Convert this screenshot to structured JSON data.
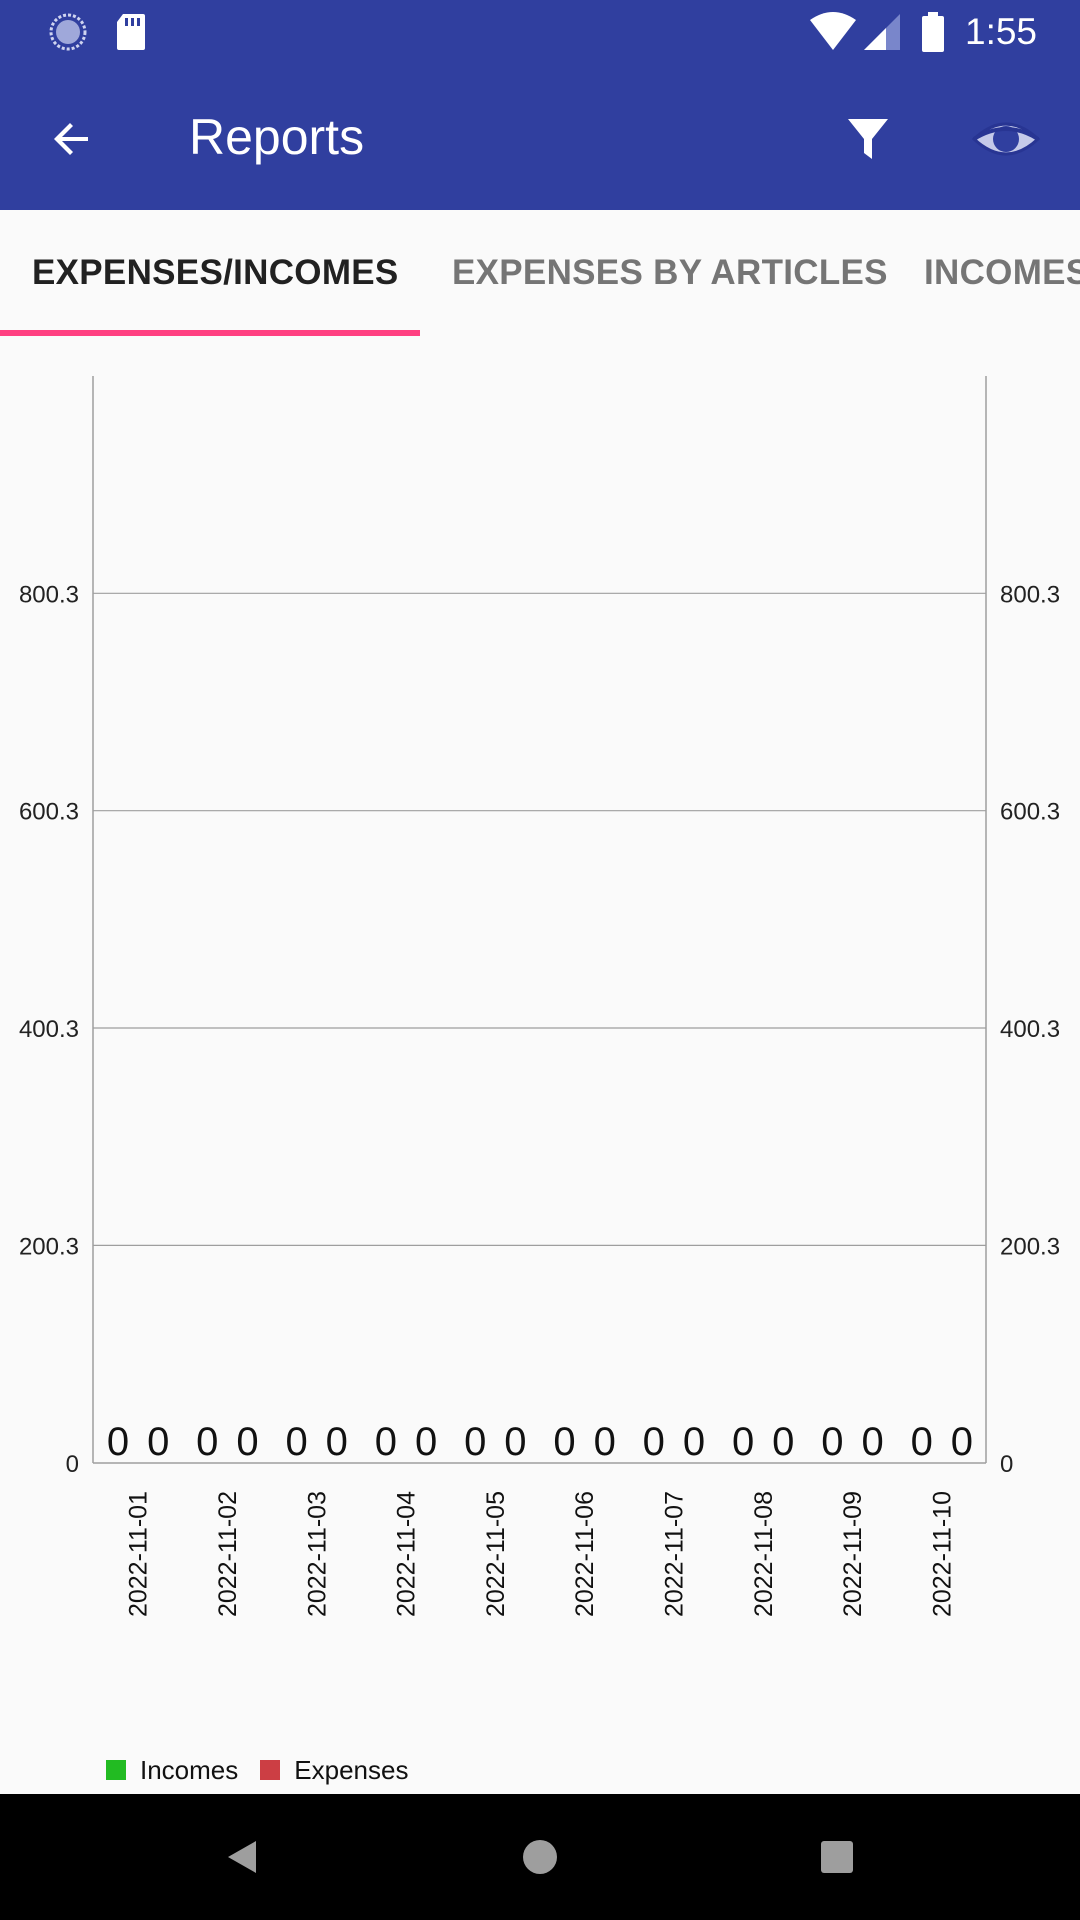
{
  "status_bar": {
    "time": "1:55",
    "icons": [
      "sync-icon",
      "sd-card-icon",
      "wifi-icon",
      "signal-icon",
      "battery-icon"
    ]
  },
  "app_bar": {
    "title": "Reports",
    "back_icon": "arrow-back-icon",
    "filter_icon": "filter-icon",
    "view_icon": "eye-icon",
    "background": "#303f9f"
  },
  "tabs": [
    {
      "label": "EXPENSES/INCOMES",
      "active": true
    },
    {
      "label": "EXPENSES BY ARTICLES",
      "active": false
    },
    {
      "label": "INCOMES",
      "active": false
    }
  ],
  "tab_indicator_color": "#ff4081",
  "chart_data": {
    "type": "bar",
    "categories": [
      "2022-11-01",
      "2022-11-02",
      "2022-11-03",
      "2022-11-04",
      "2022-11-05",
      "2022-11-06",
      "2022-11-07",
      "2022-11-08",
      "2022-11-09",
      "2022-11-10"
    ],
    "series": [
      {
        "name": "Incomes",
        "color": "#22bb22",
        "values": [
          0,
          0,
          0,
          0,
          0,
          0,
          0,
          0,
          0,
          0
        ],
        "labels": [
          "0",
          "0",
          "0",
          "0",
          "0",
          "0",
          "0",
          "0",
          "0",
          "0"
        ]
      },
      {
        "name": "Expenses",
        "color": "#cc3e44",
        "values": [
          0,
          0,
          0,
          0,
          0,
          0,
          0,
          0,
          0,
          0
        ],
        "labels": [
          "0",
          "0",
          "0",
          "0",
          "0",
          "0",
          "0",
          "0",
          "0",
          "0"
        ]
      }
    ],
    "yticks": [
      0,
      200.3,
      400.3,
      600.3,
      800.3
    ],
    "ytick_labels": [
      "0",
      "200.3",
      "400.3",
      "600.3",
      "800.3"
    ],
    "ylim": [
      0,
      1000.3
    ],
    "grid": true,
    "dual_y_axis": true,
    "legend_position": "bottom-left",
    "xlabel_rotation": "vertical"
  },
  "legend": [
    {
      "label": "Incomes",
      "color": "#22bb22"
    },
    {
      "label": "Expenses",
      "color": "#cc3e44"
    }
  ],
  "nav_bar": {
    "icons": [
      "back-triangle-icon",
      "home-circle-icon",
      "recents-square-icon"
    ]
  }
}
